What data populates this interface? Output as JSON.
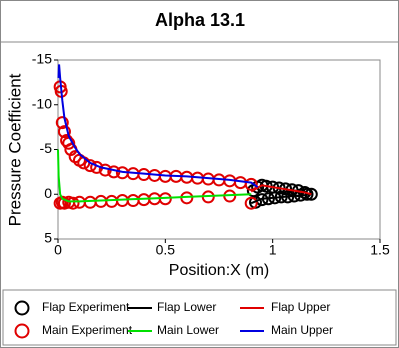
{
  "chart_data": {
    "type": "line",
    "title": "Alpha 13.1",
    "x_label": "Position:X (m)",
    "y_label": "Pressure Coefficient",
    "xlim": [
      0,
      1.5
    ],
    "xticks": [
      0,
      0.5,
      1,
      1.5
    ],
    "ylim": [
      5,
      -15
    ],
    "yticks": [
      -15,
      -10,
      -5,
      0,
      5
    ],
    "grid": false,
    "legend": "bottom",
    "series": [
      {
        "name": "Flap Experiment",
        "type": "scatter",
        "color": "#000000",
        "x": [
          0.91,
          0.93,
          0.95,
          0.97,
          1.0,
          1.03,
          1.06,
          1.09,
          1.12,
          1.15,
          1.18,
          0.92,
          0.95,
          0.98,
          1.01,
          1.04,
          1.07,
          1.1,
          1.13,
          1.16
        ],
        "values": [
          -0.4,
          -0.8,
          -1,
          -0.9,
          -0.8,
          -0.7,
          -0.6,
          -0.5,
          -0.4,
          -0.2,
          0,
          0.9,
          0.6,
          0.5,
          0.4,
          0.3,
          0.3,
          0.2,
          0.1,
          0
        ]
      },
      {
        "name": "Flap Lower",
        "type": "line",
        "color": "#000000",
        "x": [
          0.9,
          0.95,
          1.0,
          1.05,
          1.1,
          1.15,
          1.18
        ],
        "values": [
          1,
          0.5,
          0.4,
          0.3,
          0.2,
          0.1,
          0
        ]
      },
      {
        "name": "Flap Upper",
        "type": "line",
        "color": "#e00000",
        "x": [
          0.9,
          0.95,
          1.0,
          1.05,
          1.1,
          1.15,
          1.18
        ],
        "values": [
          -0.3,
          -1,
          -0.8,
          -0.6,
          -0.4,
          -0.2,
          0
        ]
      },
      {
        "name": "Main Experiment",
        "type": "scatter",
        "color": "#e00000",
        "x": [
          0.01,
          0.015,
          0.02,
          0.03,
          0.04,
          0.05,
          0.06,
          0.08,
          0.1,
          0.12,
          0.15,
          0.18,
          0.22,
          0.26,
          0.3,
          0.35,
          0.4,
          0.45,
          0.5,
          0.55,
          0.6,
          0.65,
          0.7,
          0.75,
          0.8,
          0.85,
          0.9,
          0.01,
          0.02,
          0.03,
          0.05,
          0.07,
          0.1,
          0.15,
          0.2,
          0.25,
          0.3,
          0.35,
          0.4,
          0.45,
          0.5,
          0.6,
          0.7,
          0.8,
          0.9
        ],
        "values": [
          -12,
          -11.5,
          -8,
          -7,
          -6,
          -5.7,
          -5,
          -4.2,
          -3.8,
          -3.5,
          -3.2,
          -3,
          -2.7,
          -2.5,
          -2.4,
          -2.3,
          -2.2,
          -2.1,
          -2,
          -2,
          -1.9,
          -1.8,
          -1.7,
          -1.6,
          -1.5,
          -1.3,
          -1.1,
          1,
          0.9,
          1,
          0.9,
          1,
          0.9,
          0.9,
          0.8,
          0.8,
          0.7,
          0.7,
          0.6,
          0.5,
          0.5,
          0.4,
          0.3,
          0.2,
          1
        ]
      },
      {
        "name": "Main Lower",
        "type": "line",
        "color": "#00e000",
        "x": [
          0,
          0.003,
          0.01,
          0.02,
          0.05,
          0.1,
          0.2,
          0.3,
          0.4,
          0.5,
          0.6,
          0.7,
          0.8,
          0.9
        ],
        "values": [
          -5,
          -2,
          0,
          0.5,
          0.8,
          0.8,
          0.7,
          0.6,
          0.5,
          0.4,
          0.3,
          0.2,
          0.1,
          0
        ]
      },
      {
        "name": "Main Upper",
        "type": "line",
        "color": "#0000e0",
        "x": [
          0.002,
          0.005,
          0.01,
          0.02,
          0.03,
          0.05,
          0.08,
          0.1,
          0.15,
          0.2,
          0.3,
          0.4,
          0.5,
          0.6,
          0.7,
          0.8,
          0.9,
          0.93
        ],
        "values": [
          -13,
          -14.5,
          -13,
          -10.5,
          -8.5,
          -6.5,
          -5.2,
          -4.5,
          -3.5,
          -3,
          -2.5,
          -2.3,
          -2.1,
          -2,
          -1.8,
          -1.6,
          -1.3,
          -0.8
        ]
      }
    ]
  }
}
